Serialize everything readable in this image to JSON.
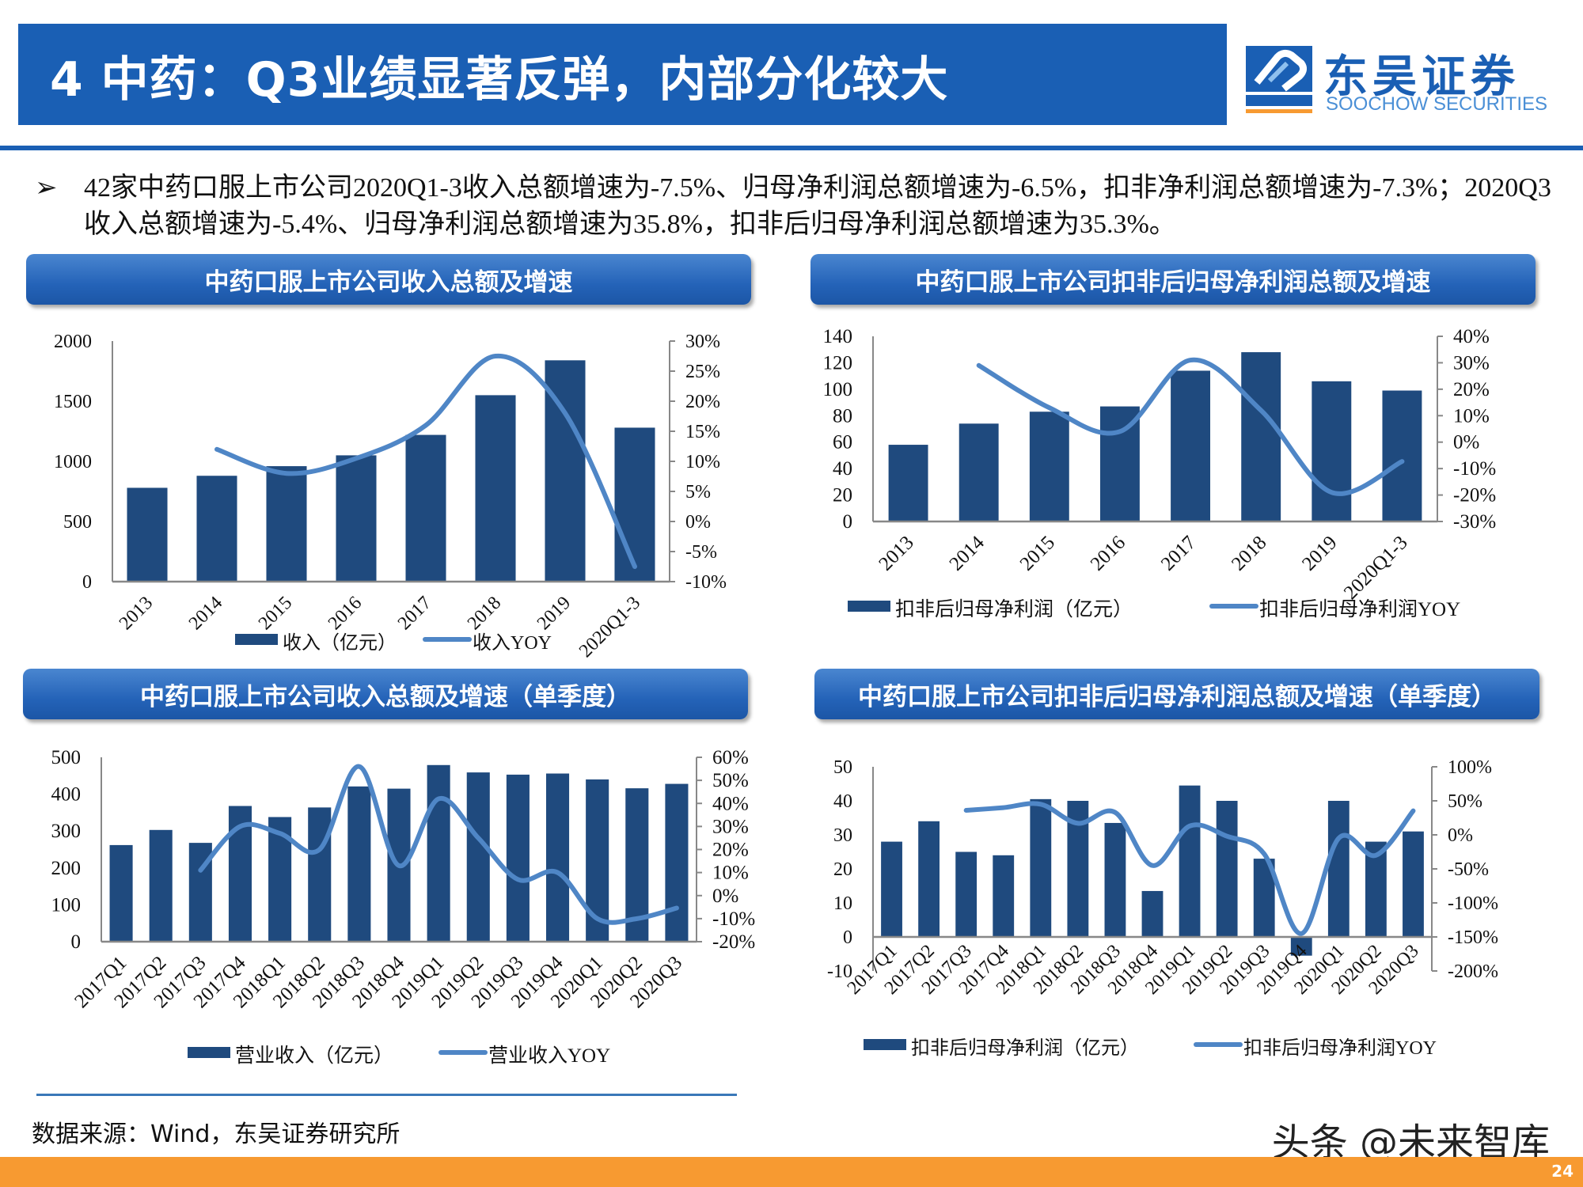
{
  "header": {
    "title": "4 中药：Q3业绩显著反弹，内部分化较大"
  },
  "logo": {
    "cn": "东吴证券",
    "en": "SOOCHOW SECURITIES",
    "mark": "SCS",
    "colors": {
      "primary": "#1a5fb4",
      "accent": "#f79a31"
    }
  },
  "bullet": {
    "icon": "arrow-bullet-icon",
    "symbol": "➢",
    "text": "42家中药口服上市公司2020Q1-3收入总额增速为-7.5%、归母净利润总额增速为-6.5%，扣非净利润总额增速为-7.3%；2020Q3收入总额增速为-5.4%、归母净利润总额增速为35.8%，扣非后归母净利润总额增速为35.3%。"
  },
  "panels": [
    {
      "title": "中药口服上市公司收入总额及增速"
    },
    {
      "title": "中药口服上市公司扣非后归母净利润总额及增速"
    },
    {
      "title": "中药口服上市公司收入总额及增速（单季度）"
    },
    {
      "title": "中药口服上市公司扣非后归母净利润总额及增速（单季度）"
    }
  ],
  "colors": {
    "bar": "#1f4a7e",
    "line": "#4f86c6",
    "axis": "#888888"
  },
  "chart_data": [
    {
      "type": "bar+line",
      "categories": [
        "2013",
        "2014",
        "2015",
        "2016",
        "2017",
        "2018",
        "2019",
        "2020Q1-3"
      ],
      "series": [
        {
          "name": "收入（亿元）",
          "type": "bar",
          "axis": "left",
          "values": [
            780,
            880,
            960,
            1050,
            1220,
            1550,
            1840,
            1280
          ]
        },
        {
          "name": "收入YOY",
          "type": "line",
          "axis": "right",
          "unit": "%",
          "values": [
            null,
            12,
            8,
            10.5,
            16,
            27.5,
            18,
            -7.5
          ]
        }
      ],
      "ylim_left": [
        0,
        2000
      ],
      "yticks_left": [
        "0",
        "500",
        "1000",
        "1500",
        "2000"
      ],
      "ylim_right": [
        -10,
        30
      ],
      "yticks_right": [
        "-10%",
        "-5%",
        "0%",
        "5%",
        "10%",
        "15%",
        "20%",
        "25%",
        "30%"
      ],
      "grid": false,
      "legend": "bottom"
    },
    {
      "type": "bar+line",
      "categories": [
        "2013",
        "2014",
        "2015",
        "2016",
        "2017",
        "2018",
        "2019",
        "2020Q1-3"
      ],
      "series": [
        {
          "name": "扣非后归母净利润（亿元）",
          "type": "bar",
          "axis": "left",
          "values": [
            58,
            74,
            83,
            87,
            114,
            128,
            106,
            99
          ]
        },
        {
          "name": "扣非后归母净利润YOY",
          "type": "line",
          "axis": "right",
          "unit": "%",
          "values": [
            null,
            29,
            13,
            4,
            31,
            12,
            -19,
            -7.3
          ]
        }
      ],
      "ylim_left": [
        0,
        140
      ],
      "yticks_left": [
        "0",
        "20",
        "40",
        "60",
        "80",
        "100",
        "120",
        "140"
      ],
      "ylim_right": [
        -30,
        40
      ],
      "yticks_right": [
        "-30%",
        "-20%",
        "-10%",
        "0%",
        "10%",
        "20%",
        "30%",
        "40%"
      ],
      "grid": false,
      "legend": "bottom"
    },
    {
      "type": "bar+line",
      "categories": [
        "2017Q1",
        "2017Q2",
        "2017Q3",
        "2017Q4",
        "2018Q1",
        "2018Q2",
        "2018Q3",
        "2018Q4",
        "2019Q1",
        "2019Q2",
        "2019Q3",
        "2019Q4",
        "2020Q1",
        "2020Q2",
        "2020Q3"
      ],
      "series": [
        {
          "name": "营业收入（亿元）",
          "type": "bar",
          "axis": "left",
          "values": [
            262,
            303,
            268,
            368,
            338,
            364,
            421,
            415,
            479,
            459,
            453,
            456,
            440,
            416,
            428
          ]
        },
        {
          "name": "营业收入YOY",
          "type": "line",
          "axis": "right",
          "unit": "%",
          "values": [
            null,
            null,
            11,
            30,
            27,
            20,
            56,
            13,
            42,
            25,
            7,
            10,
            -10,
            -10,
            -5.4
          ]
        }
      ],
      "ylim_left": [
        0,
        500
      ],
      "yticks_left": [
        "0",
        "100",
        "200",
        "300",
        "400",
        "500"
      ],
      "ylim_right": [
        -20,
        60
      ],
      "yticks_right": [
        "-20%",
        "-10%",
        "0%",
        "10%",
        "20%",
        "30%",
        "40%",
        "50%",
        "60%"
      ],
      "grid": false,
      "legend": "bottom"
    },
    {
      "type": "bar+line",
      "categories": [
        "2017Q1",
        "2017Q2",
        "2017Q3",
        "2017Q4",
        "2018Q1",
        "2018Q2",
        "2018Q3",
        "2018Q4",
        "2019Q1",
        "2019Q2",
        "2019Q3",
        "2019Q4",
        "2020Q1",
        "2020Q2",
        "2020Q3"
      ],
      "series": [
        {
          "name": "扣非后归母净利润（亿元）",
          "type": "bar",
          "axis": "left",
          "values": [
            28,
            34,
            25,
            24,
            40.5,
            40,
            33.5,
            13.5,
            44.5,
            40,
            23,
            -5.5,
            40,
            28,
            31
          ]
        },
        {
          "name": "扣非后归母净利润YOY",
          "type": "line",
          "axis": "right",
          "unit": "%",
          "values": [
            null,
            null,
            36,
            40,
            45,
            17,
            33,
            -45,
            13,
            -2,
            -28,
            -145,
            -5,
            -30,
            35.3
          ]
        }
      ],
      "ylim_left": [
        -10,
        50
      ],
      "yticks_left": [
        "-10",
        "0",
        "10",
        "20",
        "30",
        "40",
        "50"
      ],
      "ylim_right": [
        -200,
        100
      ],
      "yticks_right": [
        "-200%",
        "-150%",
        "-100%",
        "-50%",
        "0%",
        "50%",
        "100%"
      ],
      "grid": false,
      "legend": "bottom"
    }
  ],
  "footer": {
    "source": "数据来源：Wind，东吴证券研究所",
    "watermark": "头条 @未来智库",
    "page": "24"
  }
}
